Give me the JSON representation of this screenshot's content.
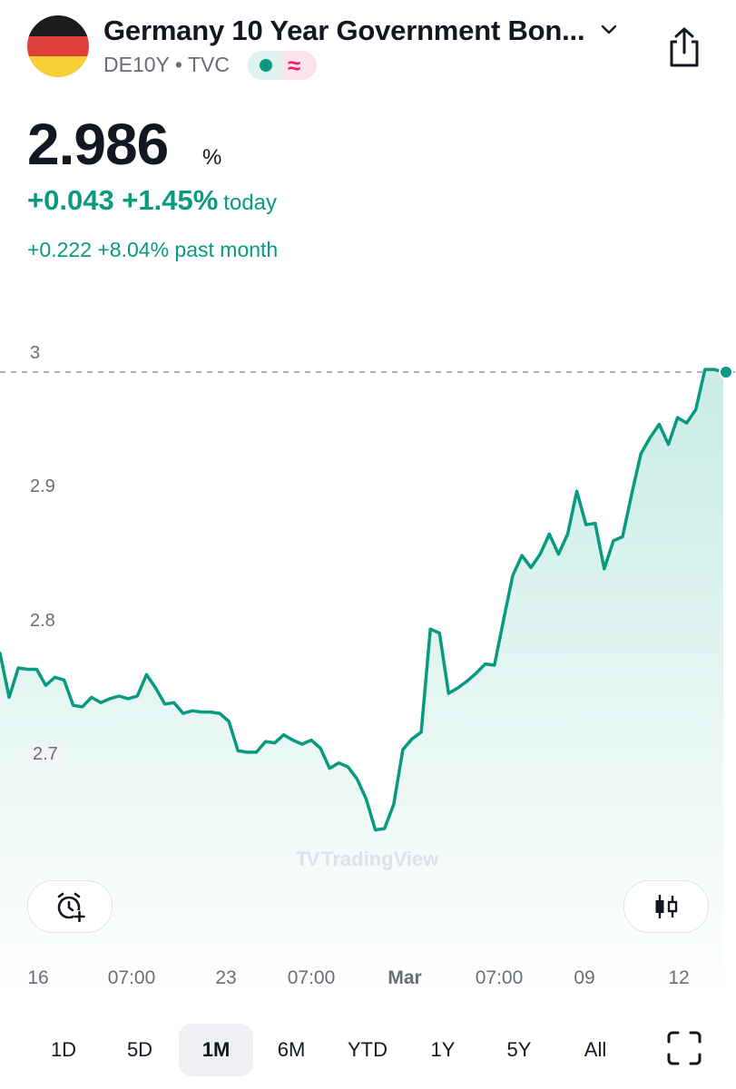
{
  "header": {
    "title": "Germany 10 Year Government Bon...",
    "symbol": "DE10Y",
    "exchange": "TVC",
    "separator": "•",
    "status_wave": "≈",
    "flag_colors": [
      "#1c1c1c",
      "#e0403a",
      "#f6cf35"
    ]
  },
  "quote": {
    "price": "2.986",
    "unit": "%",
    "change_today": "+0.043 +1.45%",
    "today_label": "today",
    "change_month": "+0.222 +8.04% past month"
  },
  "colors": {
    "accent": "#089981",
    "area_top": "#c9ece5",
    "area_bottom": "#ffffff",
    "text": "#131722",
    "muted": "#6a6d78"
  },
  "chart_data": {
    "type": "area",
    "y_tick_labels": [
      "3",
      "2.9",
      "2.8",
      "2.7"
    ],
    "ylim": [
      2.63,
      3.01
    ],
    "x_tick_labels": [
      "16",
      "07:00",
      "23",
      "07:00",
      "Mar",
      "07:00",
      "09",
      "12"
    ],
    "last_value": 2.986,
    "grid": false,
    "watermark": "TradingView",
    "series": [
      {
        "values": [
          2.776,
          2.743,
          2.765,
          2.764,
          2.764,
          2.752,
          2.758,
          2.756,
          2.737,
          2.736,
          2.743,
          2.739,
          2.742,
          2.744,
          2.742,
          2.744,
          2.76,
          2.75,
          2.738,
          2.739,
          2.731,
          2.733,
          2.732,
          2.732,
          2.731,
          2.725,
          2.703,
          2.702,
          2.702,
          2.71,
          2.709,
          2.715,
          2.711,
          2.708,
          2.711,
          2.705,
          2.69,
          2.694,
          2.691,
          2.682,
          2.667,
          2.644,
          2.645,
          2.663,
          2.704,
          2.712,
          2.717,
          2.794,
          2.791,
          2.746,
          2.75,
          2.755,
          2.761,
          2.768,
          2.767,
          2.801,
          2.834,
          2.849,
          2.84,
          2.85,
          2.865,
          2.85,
          2.865,
          2.897,
          2.872,
          2.873,
          2.839,
          2.86,
          2.863,
          2.895,
          2.925,
          2.937,
          2.947,
          2.932,
          2.952,
          2.948,
          2.958,
          2.988,
          2.988,
          2.986
        ]
      }
    ]
  },
  "actions": {
    "alarm_icon": "alarm-add-icon",
    "chart_style_icon": "candles-icon",
    "share_icon": "share-icon",
    "fullscreen_icon": "fullscreen-icon"
  },
  "ranges": [
    {
      "label": "1D",
      "active": false
    },
    {
      "label": "5D",
      "active": false
    },
    {
      "label": "1M",
      "active": true
    },
    {
      "label": "6M",
      "active": false
    },
    {
      "label": "YTD",
      "active": false
    },
    {
      "label": "1Y",
      "active": false
    },
    {
      "label": "5Y",
      "active": false
    },
    {
      "label": "All",
      "active": false
    }
  ]
}
